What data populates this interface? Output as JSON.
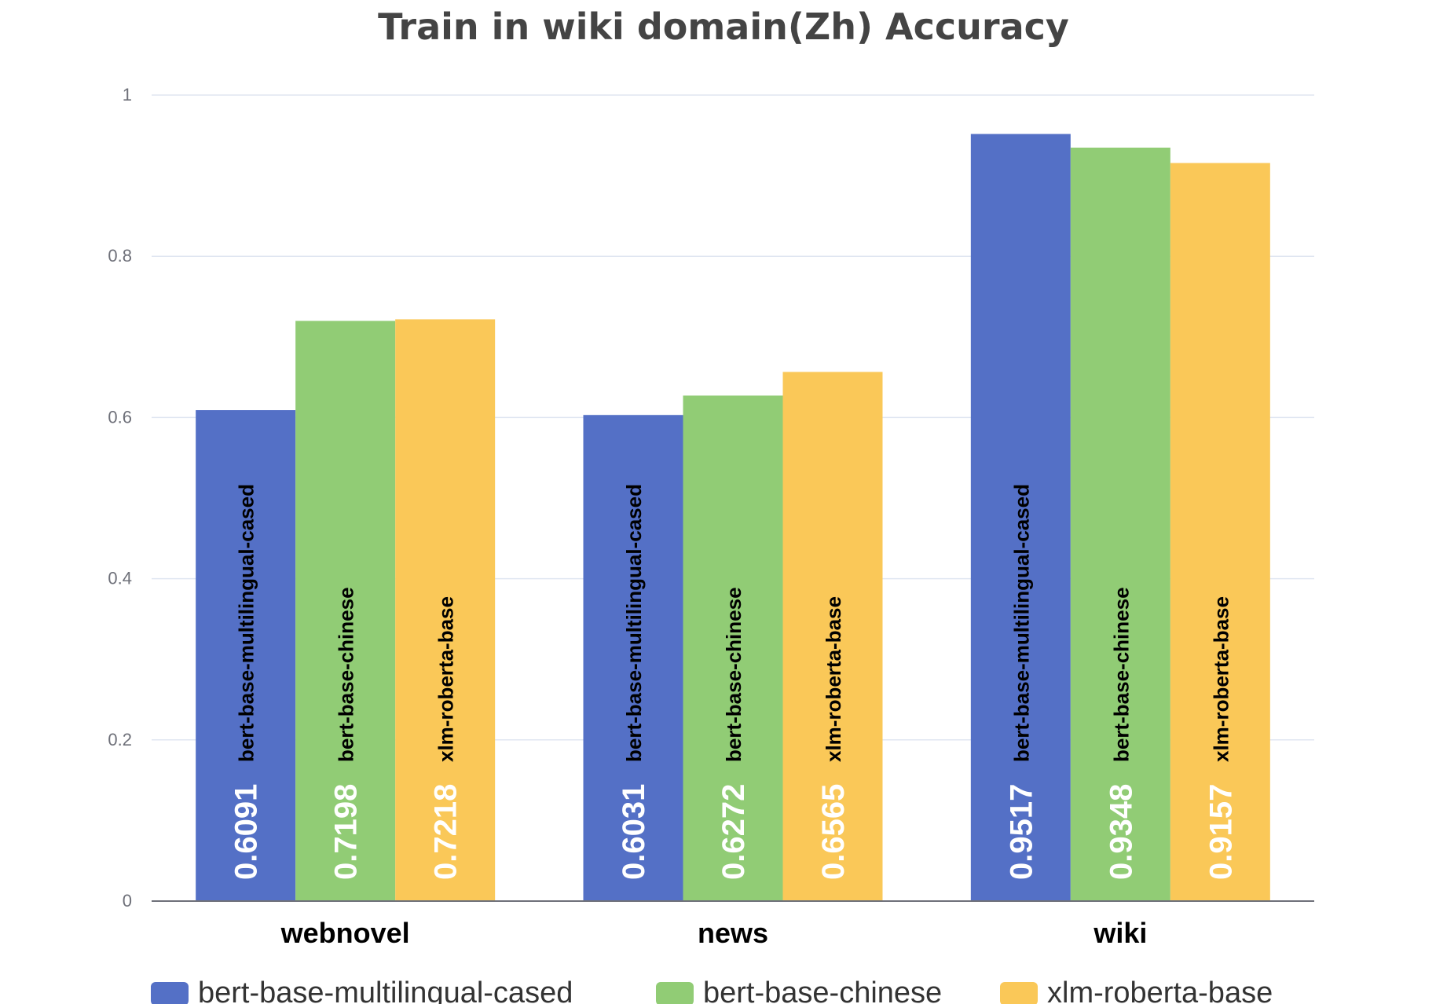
{
  "chart_data": {
    "type": "bar",
    "title": "Train in wiki domain(Zh) Accuracy",
    "categories": [
      "webnovel",
      "news",
      "wiki"
    ],
    "series": [
      {
        "name": "bert-base-multilingual-cased",
        "color": "#5470c6",
        "values": [
          0.6091,
          0.6031,
          0.9517
        ]
      },
      {
        "name": "bert-base-chinese",
        "color": "#91cc75",
        "values": [
          0.7198,
          0.6272,
          0.9348
        ]
      },
      {
        "name": "xlm-roberta-base",
        "color": "#fac858",
        "values": [
          0.7218,
          0.6565,
          0.9157
        ]
      }
    ],
    "y_ticks": [
      "0",
      "0.2",
      "0.4",
      "0.6",
      "0.8",
      "1"
    ],
    "ylim": [
      0,
      1
    ],
    "grid": true,
    "legend_position": "bottom-center"
  }
}
